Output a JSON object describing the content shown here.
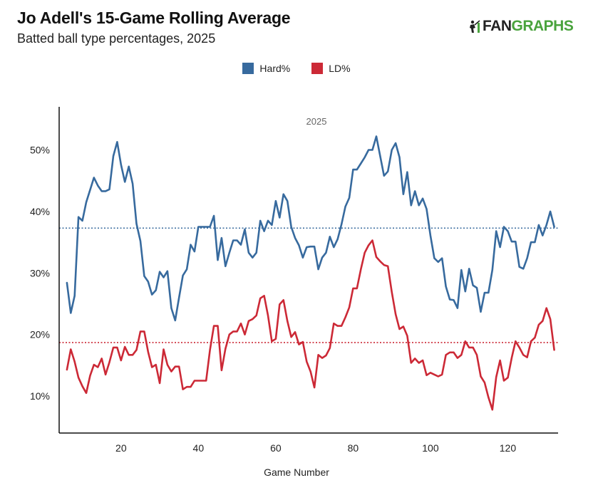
{
  "header": {
    "title": "Jo Adell's 15-Game Rolling Average",
    "subtitle": "Batted ball type percentages, 2025"
  },
  "logo": {
    "fan": "FAN",
    "graphs": "GRAPHS",
    "icon": "fangraphs-player-icon"
  },
  "colors": {
    "hard": "#376a9e",
    "ld": "#cc2936"
  },
  "chart_data": {
    "type": "line",
    "title": "Jo Adell's 15-Game Rolling Average",
    "subtitle": "Batted ball type percentages, 2025",
    "xlabel": "Game Number",
    "ylabel": "",
    "xlim": [
      4,
      133
    ],
    "ylim": [
      4,
      57
    ],
    "x_ticks": [
      20,
      40,
      60,
      80,
      100,
      120
    ],
    "y_ticks": [
      10,
      20,
      30,
      40,
      50
    ],
    "y_tick_format": "%",
    "panel_label": "2025",
    "legend": {
      "position": "top",
      "items": [
        "Hard%",
        "LD%"
      ]
    },
    "reference_lines": [
      {
        "series": "Hard%",
        "value": 37.3,
        "style": "dotted"
      },
      {
        "series": "LD%",
        "value": 18.7,
        "style": "dotted"
      }
    ],
    "series": [
      {
        "name": "Hard%",
        "x": [
          6,
          7,
          8,
          9,
          10,
          11,
          12,
          13,
          14,
          15,
          16,
          17,
          18,
          19,
          20,
          21,
          22,
          23,
          24,
          25,
          26,
          27,
          28,
          29,
          30,
          31,
          32,
          33,
          34,
          35,
          36,
          37,
          38,
          39,
          40,
          41,
          42,
          43,
          44,
          45,
          46,
          47,
          48,
          49,
          50,
          51,
          52,
          53,
          54,
          55,
          56,
          57,
          58,
          59,
          60,
          61,
          62,
          63,
          64,
          65,
          66,
          67,
          68,
          69,
          70,
          71,
          72,
          73,
          74,
          75,
          76,
          77,
          78,
          79,
          80,
          81,
          82,
          83,
          84,
          85,
          86,
          87,
          88,
          89,
          90,
          91,
          92,
          93,
          94,
          95,
          96,
          97,
          98,
          99,
          100,
          101,
          102,
          103,
          104,
          105,
          106,
          107,
          108,
          109,
          110,
          111,
          112,
          113,
          114,
          115,
          116,
          117,
          118,
          119,
          120,
          121,
          122,
          123,
          124,
          125,
          126,
          127,
          128,
          129,
          130,
          131,
          132
        ],
        "y": [
          28.4,
          23.5,
          26.3,
          39.1,
          38.5,
          41.5,
          43.5,
          45.5,
          44.2,
          43.3,
          43.3,
          43.6,
          49.0,
          51.3,
          47.6,
          44.8,
          47.3,
          44.5,
          38.0,
          35.2,
          29.5,
          28.6,
          26.5,
          27.2,
          30.2,
          29.3,
          30.3,
          24.3,
          22.3,
          26.0,
          29.6,
          30.6,
          34.6,
          33.5,
          37.5,
          37.5,
          37.5,
          37.5,
          39.3,
          32.1,
          35.7,
          31.1,
          33.3,
          35.3,
          35.3,
          34.6,
          37.1,
          33.3,
          32.5,
          33.3,
          38.5,
          36.8,
          38.5,
          37.8,
          41.7,
          39.0,
          42.8,
          41.7,
          37.5,
          35.7,
          34.5,
          32.5,
          34.2,
          34.3,
          34.3,
          30.6,
          32.5,
          33.3,
          35.9,
          34.2,
          35.5,
          37.9,
          40.8,
          42.2,
          46.8,
          46.8,
          47.8,
          48.8,
          50.0,
          50.0,
          52.2,
          49.0,
          45.8,
          46.5,
          50.0,
          51.1,
          48.8,
          42.8,
          46.4,
          41.0,
          43.3,
          41.0,
          42.1,
          40.4,
          36.1,
          32.4,
          31.8,
          32.4,
          27.8,
          25.7,
          25.6,
          24.3,
          30.5,
          27.0,
          30.7,
          28.0,
          27.6,
          23.7,
          26.8,
          26.8,
          30.5,
          36.8,
          34.2,
          37.5,
          36.8,
          35.1,
          35.1,
          31.0,
          30.7,
          32.4,
          35.0,
          35.0,
          37.8,
          36.1,
          37.8,
          40.0,
          37.5
        ]
      },
      {
        "name": "LD%",
        "x": [
          6,
          7,
          8,
          9,
          10,
          11,
          12,
          13,
          14,
          15,
          16,
          17,
          18,
          19,
          20,
          21,
          22,
          23,
          24,
          25,
          26,
          27,
          28,
          29,
          30,
          31,
          32,
          33,
          34,
          35,
          36,
          37,
          38,
          39,
          40,
          41,
          42,
          43,
          44,
          45,
          46,
          47,
          48,
          49,
          50,
          51,
          52,
          53,
          54,
          55,
          56,
          57,
          58,
          59,
          60,
          61,
          62,
          63,
          64,
          65,
          66,
          67,
          68,
          69,
          70,
          71,
          72,
          73,
          74,
          75,
          76,
          77,
          78,
          79,
          80,
          81,
          82,
          83,
          84,
          85,
          86,
          87,
          88,
          89,
          90,
          91,
          92,
          93,
          94,
          95,
          96,
          97,
          98,
          99,
          100,
          101,
          102,
          103,
          104,
          105,
          106,
          107,
          108,
          109,
          110,
          111,
          112,
          113,
          114,
          115,
          116,
          117,
          118,
          119,
          120,
          121,
          122,
          123,
          124,
          125,
          126,
          127,
          128,
          129,
          130,
          131,
          132
        ],
        "y": [
          14.3,
          17.6,
          15.6,
          13.0,
          11.6,
          10.5,
          13.3,
          15.1,
          14.7,
          16.1,
          13.5,
          15.5,
          17.9,
          17.9,
          15.8,
          18.0,
          16.7,
          16.7,
          17.5,
          20.5,
          20.5,
          17.2,
          14.7,
          15.1,
          12.1,
          17.6,
          15.1,
          14.0,
          14.8,
          14.8,
          11.1,
          11.5,
          11.5,
          12.5,
          12.5,
          12.5,
          12.5,
          17.5,
          21.4,
          21.4,
          14.2,
          17.7,
          20.0,
          20.5,
          20.5,
          21.8,
          20.0,
          22.2,
          22.5,
          23.1,
          25.9,
          26.3,
          23.1,
          18.9,
          19.3,
          24.9,
          25.6,
          22.2,
          19.6,
          20.4,
          18.4,
          18.8,
          15.6,
          14.0,
          11.4,
          16.7,
          16.2,
          16.6,
          17.8,
          21.8,
          21.4,
          21.4,
          22.8,
          24.4,
          27.5,
          27.5,
          30.6,
          33.3,
          34.5,
          35.3,
          32.6,
          31.9,
          31.3,
          31.1,
          26.9,
          23.3,
          20.9,
          21.3,
          19.8,
          15.4,
          16.1,
          15.4,
          15.8,
          13.4,
          13.8,
          13.5,
          13.2,
          13.5,
          16.7,
          17.1,
          17.1,
          16.2,
          16.7,
          18.9,
          17.9,
          17.9,
          16.7,
          13.2,
          12.2,
          9.8,
          7.8,
          13.1,
          15.8,
          12.5,
          13.0,
          16.2,
          18.9,
          17.9,
          16.7,
          16.3,
          18.9,
          19.5,
          21.6,
          22.2,
          24.3,
          22.5,
          17.5
        ]
      }
    ]
  }
}
